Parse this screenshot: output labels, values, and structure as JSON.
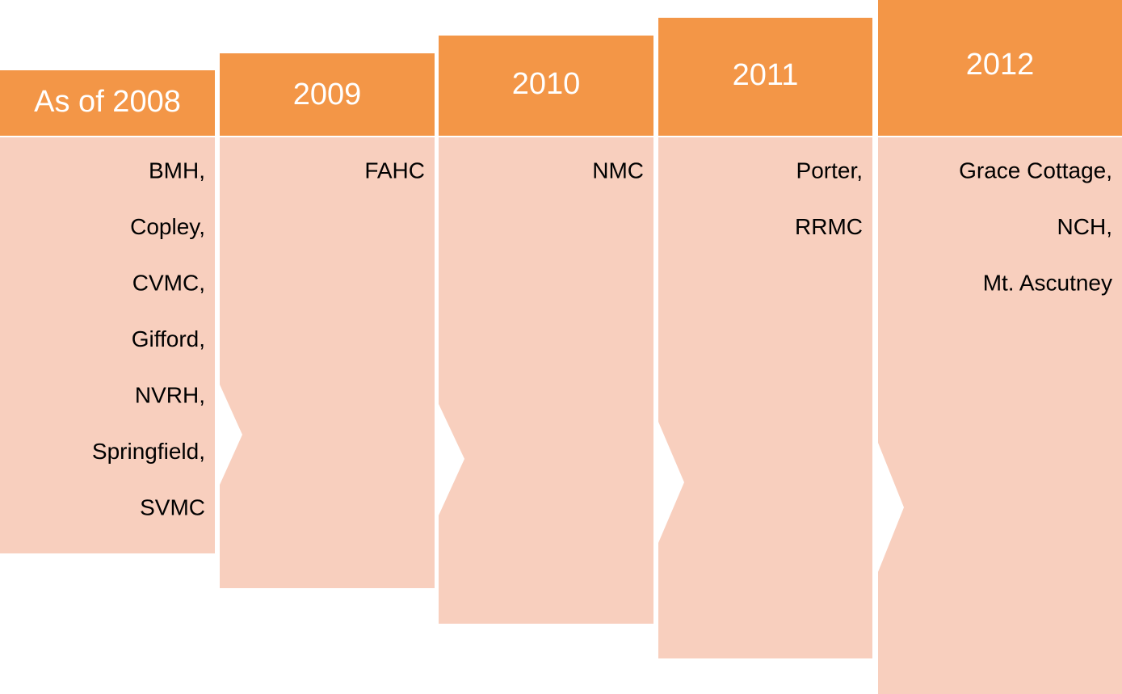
{
  "columns": [
    {
      "header": "As of 2008",
      "items": [
        "BMH,",
        "Copley,",
        "CVMC,",
        "Gifford,",
        "NVRH,",
        "Springfield,",
        "SVMC"
      ]
    },
    {
      "header": "2009",
      "items": [
        "FAHC"
      ]
    },
    {
      "header": "2010",
      "items": [
        "NMC"
      ]
    },
    {
      "header": "2011",
      "items": [
        "Porter,",
        "RRMC"
      ]
    },
    {
      "header": "2012",
      "items": [
        "Grace Cottage,",
        "NCH,",
        "Mt. Ascutney"
      ]
    }
  ]
}
